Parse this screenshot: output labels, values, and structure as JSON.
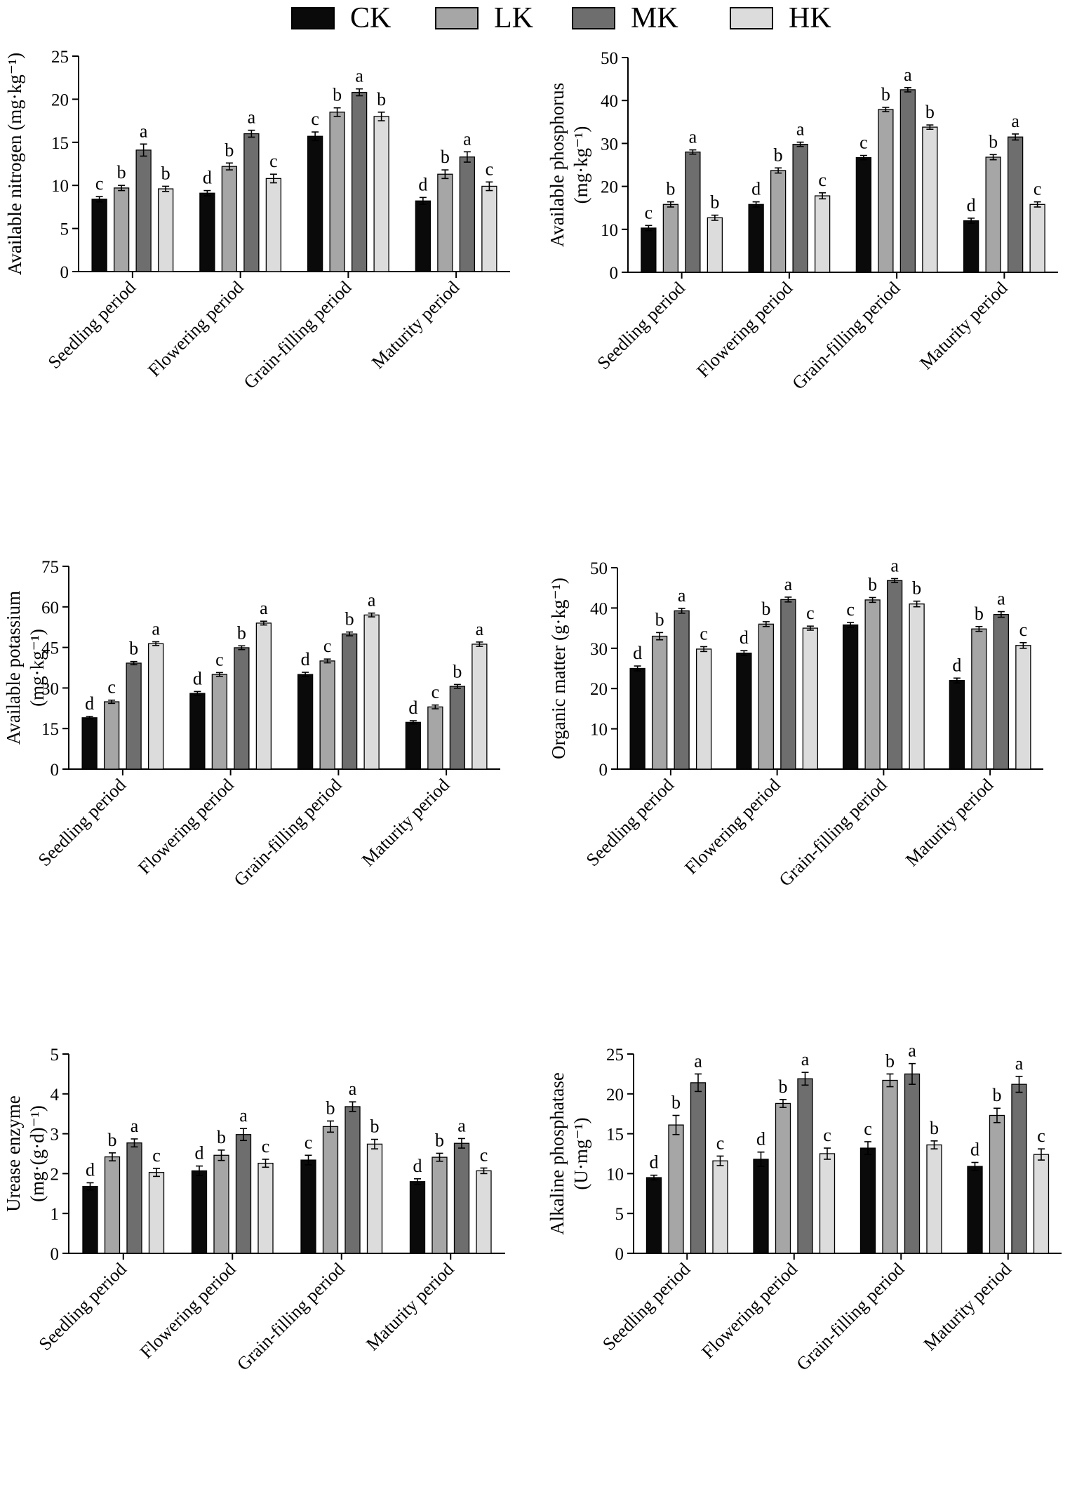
{
  "legend": [
    {
      "name": "CK",
      "color": "#0a0a0a"
    },
    {
      "name": "LK",
      "color": "#a6a6a6"
    },
    {
      "name": "MK",
      "color": "#6e6e6e"
    },
    {
      "name": "HK",
      "color": "#dcdcdc"
    }
  ],
  "chart_data": [
    {
      "type": "bar",
      "title": "",
      "ylabel": "Available nitrogen (mg·kg⁻¹)",
      "ylim": [
        0,
        25
      ],
      "yticks": [
        0,
        5,
        10,
        15,
        20,
        25
      ],
      "categories": [
        "Seedling  period",
        "Flowering  period",
        "Grain-filling period",
        "Maturity  period"
      ],
      "series": [
        {
          "name": "CK",
          "values": [
            8.4,
            9.1,
            15.7,
            8.2
          ],
          "errors": [
            0.3,
            0.3,
            0.5,
            0.4
          ],
          "letters": [
            "c",
            "d",
            "c",
            "d"
          ]
        },
        {
          "name": "LK",
          "values": [
            9.7,
            12.2,
            18.5,
            11.3
          ],
          "errors": [
            0.3,
            0.4,
            0.5,
            0.5
          ],
          "letters": [
            "b",
            "b",
            "b",
            "b"
          ]
        },
        {
          "name": "MK",
          "values": [
            14.1,
            16.0,
            20.8,
            13.3
          ],
          "errors": [
            0.7,
            0.4,
            0.4,
            0.6
          ],
          "letters": [
            "a",
            "a",
            "a",
            "a"
          ]
        },
        {
          "name": "HK",
          "values": [
            9.6,
            10.8,
            18.0,
            9.9
          ],
          "errors": [
            0.3,
            0.5,
            0.5,
            0.5
          ],
          "letters": [
            "b",
            "c",
            "b",
            "c"
          ]
        }
      ]
    },
    {
      "type": "bar",
      "title": "",
      "ylabel": "Available phosphorus|(mg·kg⁻¹)",
      "ylim": [
        0,
        50
      ],
      "yticks": [
        0,
        10,
        20,
        30,
        40,
        50
      ],
      "categories": [
        "Seedling  period",
        "Flowering  period",
        "Grain-filling period",
        "Maturity  period"
      ],
      "series": [
        {
          "name": "CK",
          "values": [
            10.3,
            15.8,
            26.7,
            12.0
          ],
          "errors": [
            0.6,
            0.6,
            0.5,
            0.6
          ],
          "letters": [
            "c",
            "d",
            "c",
            "d"
          ]
        },
        {
          "name": "LK",
          "values": [
            15.8,
            23.7,
            37.9,
            26.8
          ],
          "errors": [
            0.6,
            0.6,
            0.5,
            0.6
          ],
          "letters": [
            "b",
            "b",
            "b",
            "b"
          ]
        },
        {
          "name": "MK",
          "values": [
            28.0,
            29.8,
            42.5,
            31.5
          ],
          "errors": [
            0.5,
            0.5,
            0.5,
            0.7
          ],
          "letters": [
            "a",
            "a",
            "a",
            "a"
          ]
        },
        {
          "name": "HK",
          "values": [
            12.7,
            17.8,
            33.8,
            15.8
          ],
          "errors": [
            0.6,
            0.7,
            0.5,
            0.6
          ],
          "letters": [
            "b",
            "c",
            "b",
            "c"
          ]
        }
      ]
    },
    {
      "type": "bar",
      "title": "",
      "ylabel": "Available potassium|(mg·kg⁻¹)",
      "ylim": [
        0,
        75
      ],
      "yticks": [
        0,
        15,
        30,
        45,
        60,
        75
      ],
      "categories": [
        "Seedling  period",
        "Flowering  period",
        "Grain-filling period",
        "Maturity  period"
      ],
      "series": [
        {
          "name": "CK",
          "values": [
            19.0,
            28.0,
            35.0,
            17.3
          ],
          "errors": [
            0.5,
            0.7,
            0.8,
            0.6
          ],
          "letters": [
            "d",
            "d",
            "d",
            "d"
          ]
        },
        {
          "name": "LK",
          "values": [
            24.9,
            35.0,
            40.0,
            23.0
          ],
          "errors": [
            0.6,
            0.7,
            0.7,
            0.7
          ],
          "letters": [
            "c",
            "c",
            "c",
            "c"
          ]
        },
        {
          "name": "MK",
          "values": [
            39.2,
            44.9,
            50.0,
            30.6
          ],
          "errors": [
            0.6,
            0.7,
            0.7,
            0.7
          ],
          "letters": [
            "b",
            "b",
            "b",
            "b"
          ]
        },
        {
          "name": "HK",
          "values": [
            46.4,
            54.0,
            57.0,
            46.2
          ],
          "errors": [
            0.7,
            0.7,
            0.7,
            0.8
          ],
          "letters": [
            "a",
            "a",
            "a",
            "a"
          ]
        }
      ]
    },
    {
      "type": "bar",
      "title": "",
      "ylabel": "Organic matter (g·kg⁻¹)",
      "ylim": [
        0,
        50
      ],
      "yticks": [
        0,
        10,
        20,
        30,
        40,
        50
      ],
      "categories": [
        "Seedling  period",
        "Flowering  period",
        "Grain-filling period",
        "Maturity  period"
      ],
      "series": [
        {
          "name": "CK",
          "values": [
            25.0,
            28.8,
            35.8,
            22.0
          ],
          "errors": [
            0.6,
            0.6,
            0.6,
            0.6
          ],
          "letters": [
            "d",
            "d",
            "c",
            "d"
          ]
        },
        {
          "name": "LK",
          "values": [
            33.0,
            36.0,
            42.0,
            34.8
          ],
          "errors": [
            0.9,
            0.6,
            0.6,
            0.6
          ],
          "letters": [
            "b",
            "b",
            "b",
            "b"
          ]
        },
        {
          "name": "MK",
          "values": [
            39.3,
            42.1,
            46.8,
            38.4
          ],
          "errors": [
            0.6,
            0.6,
            0.5,
            0.7
          ],
          "letters": [
            "a",
            "a",
            "a",
            "a"
          ]
        },
        {
          "name": "HK",
          "values": [
            29.8,
            35.0,
            41.0,
            30.7
          ],
          "errors": [
            0.6,
            0.5,
            0.7,
            0.7
          ],
          "letters": [
            "c",
            "c",
            "b",
            "c"
          ]
        }
      ]
    },
    {
      "type": "bar",
      "title": "",
      "ylabel": "Urease enzyme|(mg·(g·d)⁻¹)",
      "ylim": [
        0,
        5
      ],
      "yticks": [
        0,
        1,
        2,
        3,
        4,
        5
      ],
      "categories": [
        "Seedling  period",
        "Flowering  period",
        "Grain-filling period",
        "Maturity  period"
      ],
      "series": [
        {
          "name": "CK",
          "values": [
            1.68,
            2.07,
            2.34,
            1.8
          ],
          "errors": [
            0.09,
            0.12,
            0.12,
            0.07
          ],
          "letters": [
            "d",
            "d",
            "c",
            "d"
          ]
        },
        {
          "name": "LK",
          "values": [
            2.42,
            2.46,
            3.18,
            2.41
          ],
          "errors": [
            0.1,
            0.13,
            0.14,
            0.1
          ],
          "letters": [
            "b",
            "b",
            "b",
            "b"
          ]
        },
        {
          "name": "MK",
          "values": [
            2.77,
            2.98,
            3.68,
            2.76
          ],
          "errors": [
            0.1,
            0.15,
            0.12,
            0.12
          ],
          "letters": [
            "a",
            "a",
            "a",
            "a"
          ]
        },
        {
          "name": "HK",
          "values": [
            2.03,
            2.26,
            2.74,
            2.07
          ],
          "errors": [
            0.1,
            0.1,
            0.12,
            0.07
          ],
          "letters": [
            "c",
            "c",
            "b",
            "c"
          ]
        }
      ]
    },
    {
      "type": "bar",
      "title": "",
      "ylabel": "Alkaline phosphatase|(U·mg⁻¹)",
      "ylim": [
        0,
        25
      ],
      "yticks": [
        0,
        5,
        10,
        15,
        20,
        25
      ],
      "categories": [
        "Seedling  period",
        "Flowering  period",
        "Grain-filling period",
        "Maturity  period"
      ],
      "series": [
        {
          "name": "CK",
          "values": [
            9.5,
            11.8,
            13.2,
            10.9
          ],
          "errors": [
            0.3,
            0.9,
            0.8,
            0.5
          ],
          "letters": [
            "d",
            "d",
            "c",
            "d"
          ]
        },
        {
          "name": "LK",
          "values": [
            16.1,
            18.8,
            21.7,
            17.3
          ],
          "errors": [
            1.2,
            0.5,
            0.8,
            0.9
          ],
          "letters": [
            "b",
            "b",
            "b",
            "b"
          ]
        },
        {
          "name": "MK",
          "values": [
            21.4,
            21.9,
            22.5,
            21.2
          ],
          "errors": [
            1.1,
            0.8,
            1.3,
            1.0
          ],
          "letters": [
            "a",
            "a",
            "a",
            "a"
          ]
        },
        {
          "name": "HK",
          "values": [
            11.6,
            12.5,
            13.6,
            12.4
          ],
          "errors": [
            0.6,
            0.7,
            0.5,
            0.7
          ],
          "letters": [
            "c",
            "c",
            "b",
            "c"
          ]
        }
      ]
    }
  ]
}
